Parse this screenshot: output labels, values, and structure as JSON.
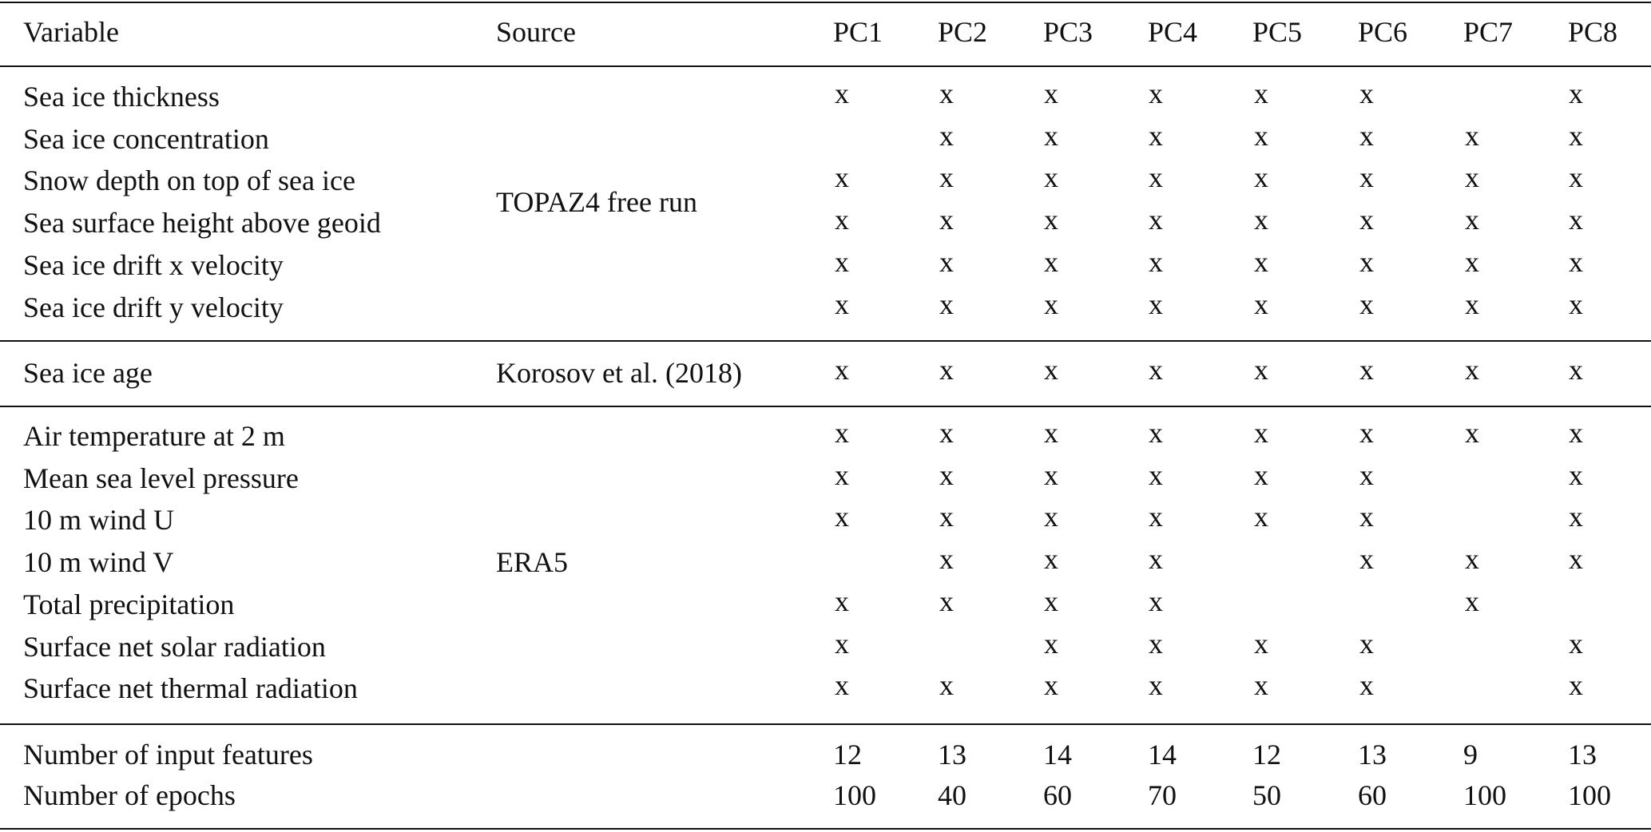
{
  "header": [
    "Variable",
    "Source",
    "PC1",
    "PC2",
    "PC3",
    "PC4",
    "PC5",
    "PC6",
    "PC7",
    "PC8"
  ],
  "groups": [
    {
      "source": "TOPAZ4 free run",
      "rows": [
        {
          "variable": "Sea ice thickness",
          "cells": [
            "x",
            "x",
            "x",
            "x",
            "x",
            "x",
            null,
            "x"
          ]
        },
        {
          "variable": "Sea ice concentration",
          "cells": [
            null,
            "x",
            "x",
            "x",
            "x",
            "x",
            "x",
            "x"
          ]
        },
        {
          "variable": "Snow depth on top of sea ice",
          "cells": [
            "x",
            "x",
            "x",
            "x",
            "x",
            "x",
            "x",
            "x"
          ]
        },
        {
          "variable": "Sea surface height above geoid",
          "cells": [
            "x",
            "x",
            "x",
            "x",
            "x",
            "x",
            "x",
            "x"
          ]
        },
        {
          "variable": "Sea ice drift x velocity",
          "cells": [
            "x",
            "x",
            "x",
            "x",
            "x",
            "x",
            "x",
            "x"
          ]
        },
        {
          "variable": "Sea ice drift y velocity",
          "cells": [
            "x",
            "x",
            "x",
            "x",
            "x",
            "x",
            "x",
            "x"
          ]
        }
      ]
    },
    {
      "source": "Korosov et al. (2018)",
      "rows": [
        {
          "variable": "Sea ice age",
          "cells": [
            "x",
            "x",
            "x",
            "x",
            "x",
            "x",
            "x",
            "x"
          ]
        }
      ]
    },
    {
      "source": "ERA5",
      "rows": [
        {
          "variable": "Air temperature at 2 m",
          "cells": [
            "x",
            "x",
            "x",
            "x",
            "x",
            "x",
            "x",
            "x"
          ]
        },
        {
          "variable": "Mean sea level pressure",
          "cells": [
            "x",
            "x",
            "x",
            "x",
            "x",
            "x",
            null,
            "x"
          ]
        },
        {
          "variable": "10 m wind U",
          "cells": [
            "x",
            "x",
            "x",
            "x",
            "x",
            "x",
            null,
            "x"
          ]
        },
        {
          "variable": "10 m wind V",
          "cells": [
            null,
            "x",
            "x",
            "x",
            null,
            "x",
            "x",
            "x"
          ]
        },
        {
          "variable": "Total precipitation",
          "cells": [
            "x",
            "x",
            "x",
            "x",
            null,
            null,
            "x",
            null
          ]
        },
        {
          "variable": "Surface net solar radiation",
          "cells": [
            "x",
            null,
            "x",
            "x",
            "x",
            "x",
            null,
            "x"
          ]
        },
        {
          "variable": "Surface net thermal radiation",
          "cells": [
            "x",
            "x",
            "x",
            "x",
            "x",
            "x",
            null,
            "x"
          ]
        }
      ]
    }
  ],
  "footer": [
    {
      "label": "Number of input features",
      "values": [
        12,
        13,
        14,
        14,
        12,
        13,
        9,
        13
      ]
    },
    {
      "label": "Number of epochs",
      "values": [
        100,
        40,
        60,
        70,
        50,
        60,
        100,
        100
      ]
    }
  ]
}
